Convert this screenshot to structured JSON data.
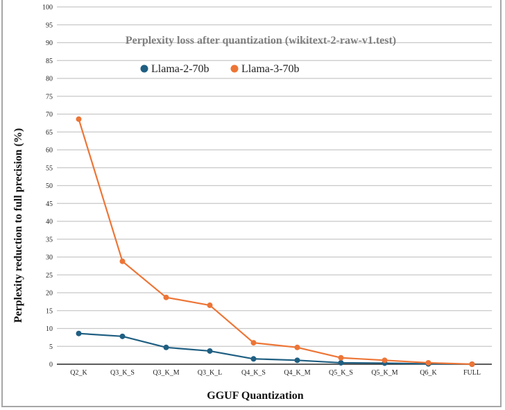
{
  "chart_data": {
    "type": "line",
    "title": "Perplexity loss after quantization (wikitext-2-raw-v1.test)",
    "xlabel": "GGUF Quantization",
    "ylabel": "Perplexity reduction to full precision (%)",
    "categories": [
      "Q2_K",
      "Q3_K_S",
      "Q3_K_M",
      "Q3_K_L",
      "Q4_K_S",
      "Q4_K_M",
      "Q5_K_S",
      "Q5_K_M",
      "Q6_K",
      "FULL"
    ],
    "ylim": [
      0,
      100
    ],
    "yticks": [
      "0",
      "5",
      "10",
      "15",
      "20",
      "25",
      "30",
      "35",
      "40",
      "45",
      "50",
      "55",
      "60",
      "65",
      "70",
      "75",
      "80",
      "85",
      "90",
      "95",
      "100"
    ],
    "grid": true,
    "legend_position": "top-left",
    "series": [
      {
        "name": "Llama-2-70b",
        "color": "#1f5f82",
        "values": [
          8.6,
          7.8,
          4.7,
          3.7,
          1.5,
          1.1,
          0.4,
          0.3,
          0.1,
          0
        ]
      },
      {
        "name": "Llama-3-70b",
        "color": "#ed7536",
        "values": [
          68.6,
          28.8,
          18.7,
          16.5,
          6.0,
          4.7,
          1.8,
          1.1,
          0.4,
          0
        ]
      }
    ]
  }
}
